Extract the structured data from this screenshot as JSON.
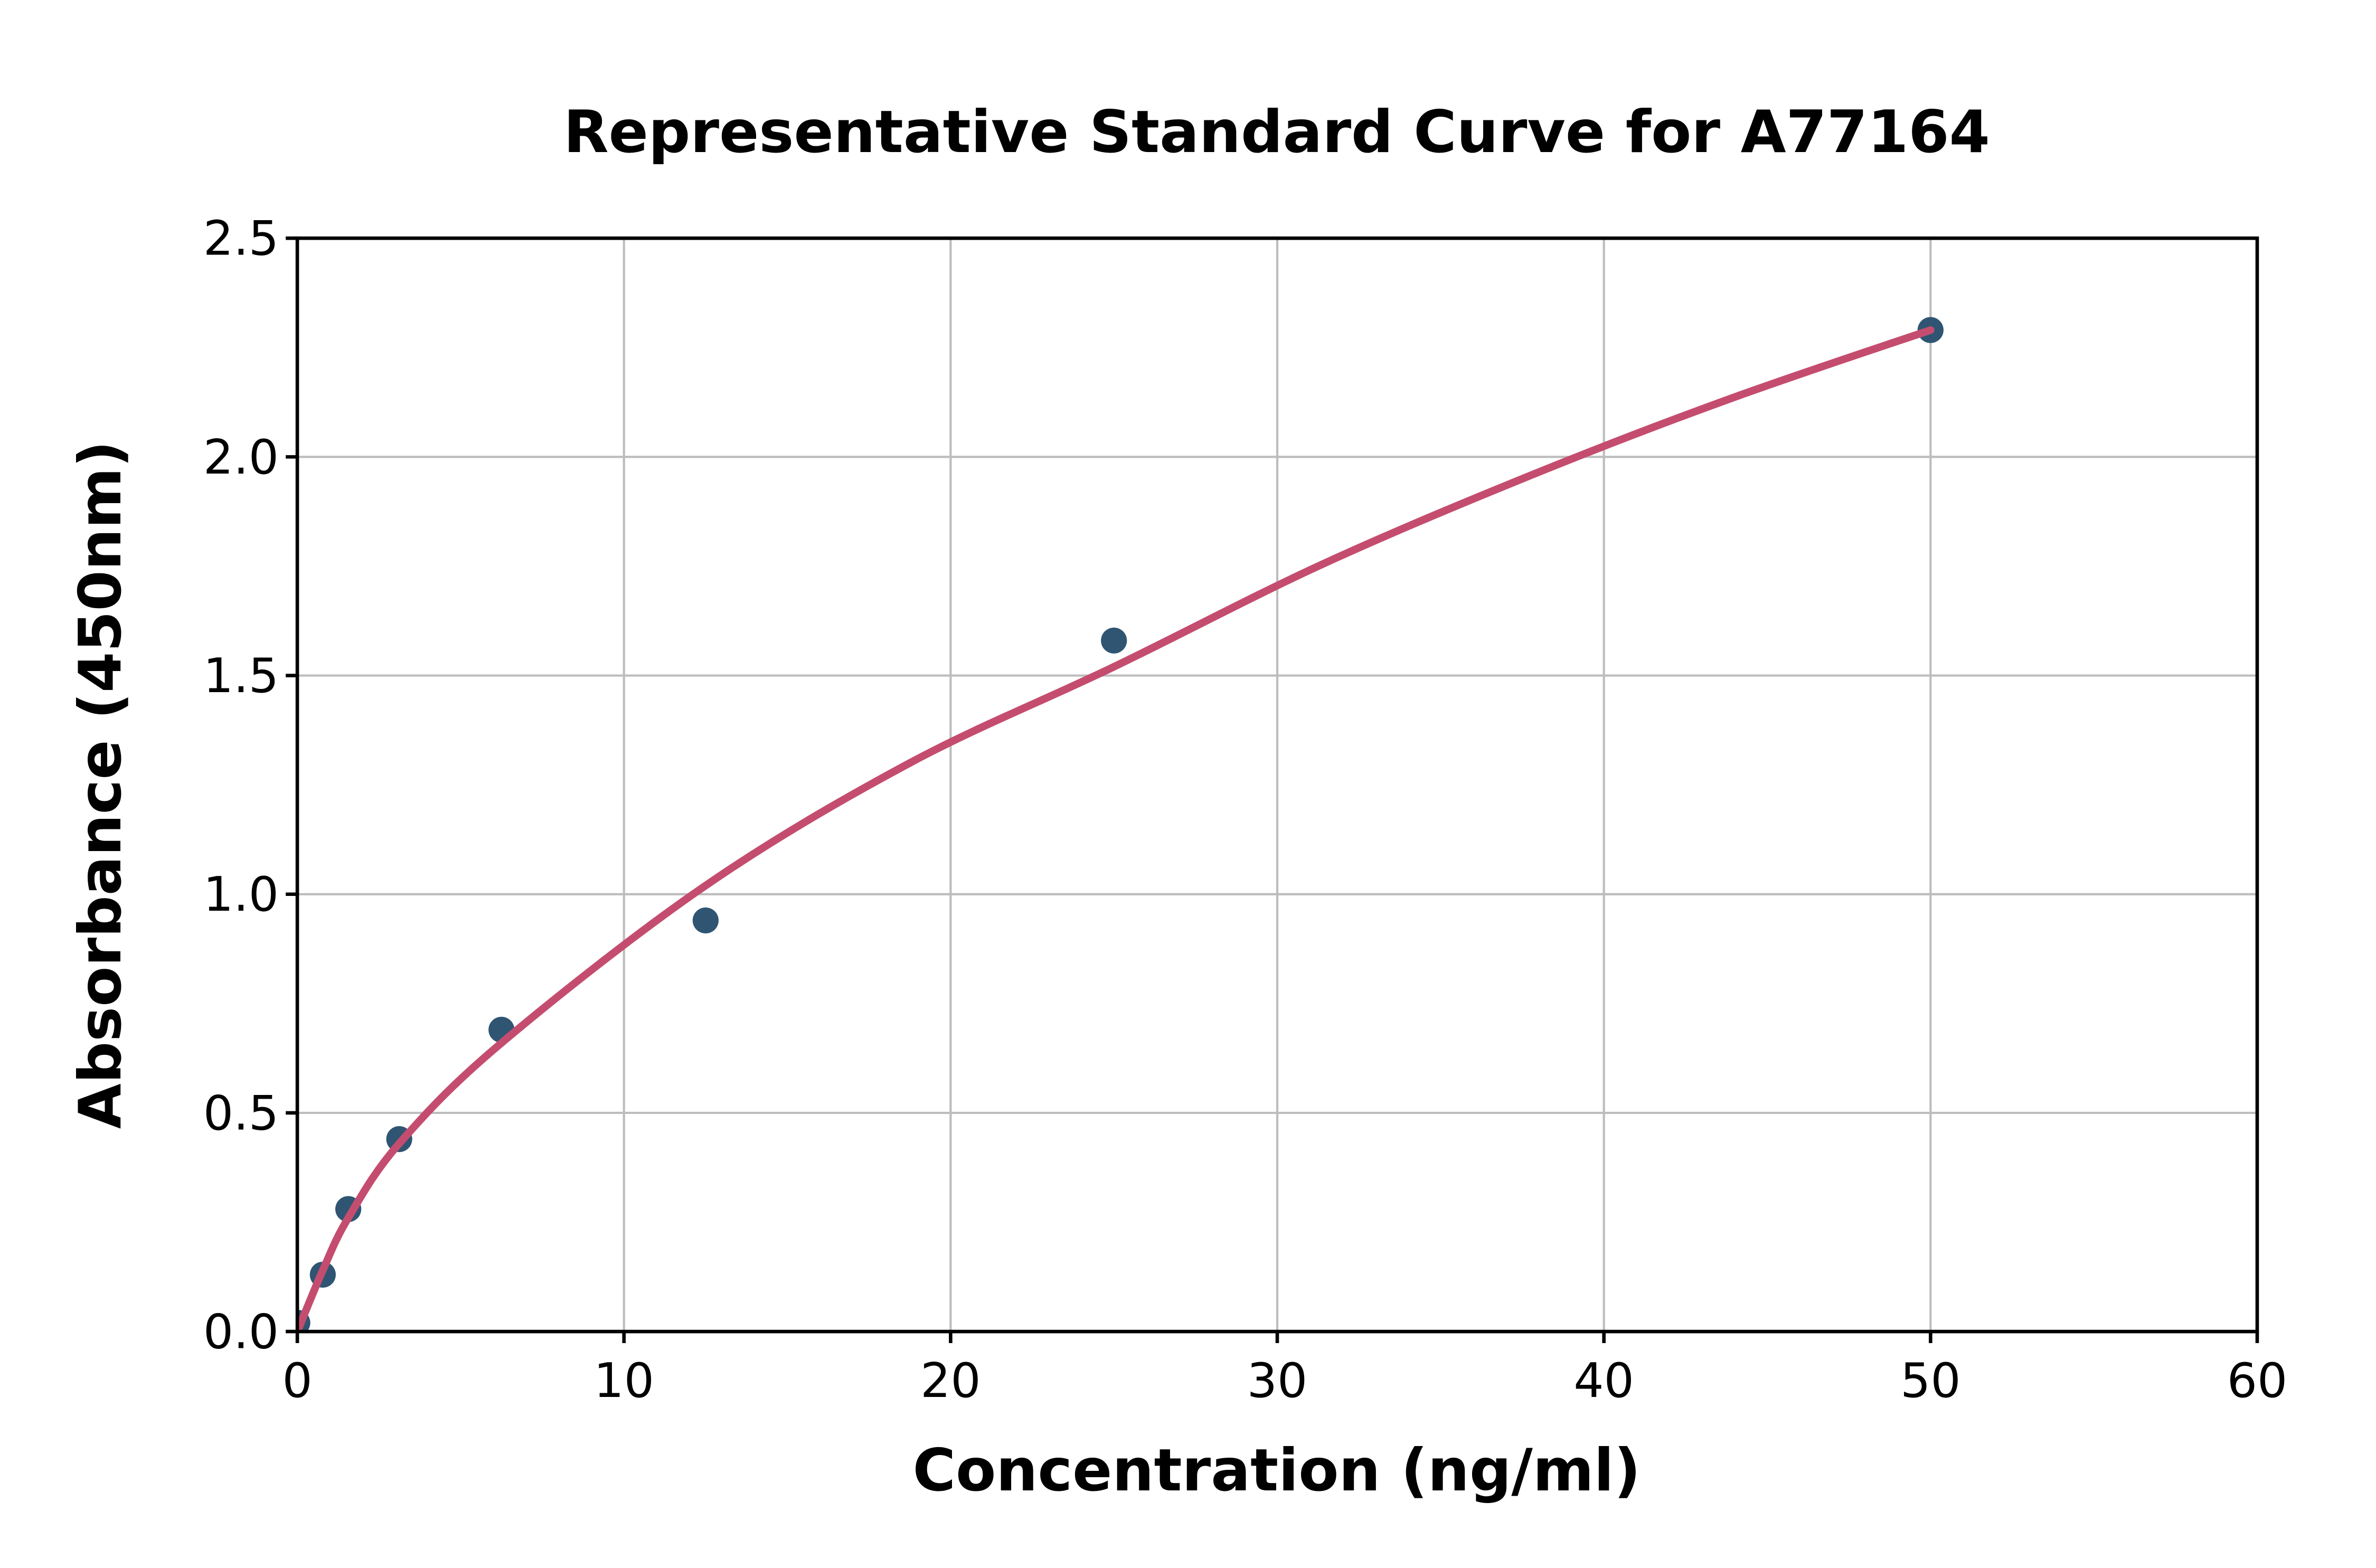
{
  "chart_data": {
    "type": "scatter",
    "title": "Representative Standard Curve for A77164",
    "xlabel": "Concentration (ng/ml)",
    "ylabel": "Absorbance (450nm)",
    "xlim": [
      0,
      60
    ],
    "ylim": [
      0,
      2.5
    ],
    "xtick_values": [
      0,
      10,
      20,
      30,
      40,
      50,
      60
    ],
    "xtick_labels": [
      "0",
      "10",
      "20",
      "30",
      "40",
      "50",
      "60"
    ],
    "ytick_values": [
      0,
      0.5,
      1,
      1.5,
      2,
      2.5
    ],
    "ytick_labels": [
      "0.0",
      "0.5",
      "1.0",
      "1.5",
      "2.0",
      "2.5"
    ],
    "grid": true,
    "legend": null,
    "series": [
      {
        "name": "standard-points",
        "type": "scatter",
        "points": [
          {
            "concentration": 0,
            "absorbance": 0.02
          },
          {
            "concentration": 0.78,
            "absorbance": 0.13
          },
          {
            "concentration": 1.56,
            "absorbance": 0.28
          },
          {
            "concentration": 3.12,
            "absorbance": 0.44
          },
          {
            "concentration": 6.25,
            "absorbance": 0.69
          },
          {
            "concentration": 12.5,
            "absorbance": 0.94
          },
          {
            "concentration": 25,
            "absorbance": 1.58
          },
          {
            "concentration": 50,
            "absorbance": 2.29
          }
        ]
      },
      {
        "name": "fitted-curve",
        "type": "line",
        "points": [
          {
            "concentration": 0,
            "absorbance": 0
          },
          {
            "concentration": 0.78,
            "absorbance": 0.14
          },
          {
            "concentration": 1.56,
            "absorbance": 0.26
          },
          {
            "concentration": 3.12,
            "absorbance": 0.43
          },
          {
            "concentration": 6.25,
            "absorbance": 0.66
          },
          {
            "concentration": 12.5,
            "absorbance": 1.02
          },
          {
            "concentration": 18.75,
            "absorbance": 1.3
          },
          {
            "concentration": 25,
            "absorbance": 1.52
          },
          {
            "concentration": 31.25,
            "absorbance": 1.75
          },
          {
            "concentration": 37.5,
            "absorbance": 1.95
          },
          {
            "concentration": 43.75,
            "absorbance": 2.13
          },
          {
            "concentration": 50,
            "absorbance": 2.29
          }
        ]
      }
    ],
    "colors": {
      "curve": "#c44d6f",
      "marker": "#2f5573",
      "grid": "#bdbdbd",
      "axis": "#000000",
      "text": "#000000",
      "background": "#ffffff"
    }
  }
}
